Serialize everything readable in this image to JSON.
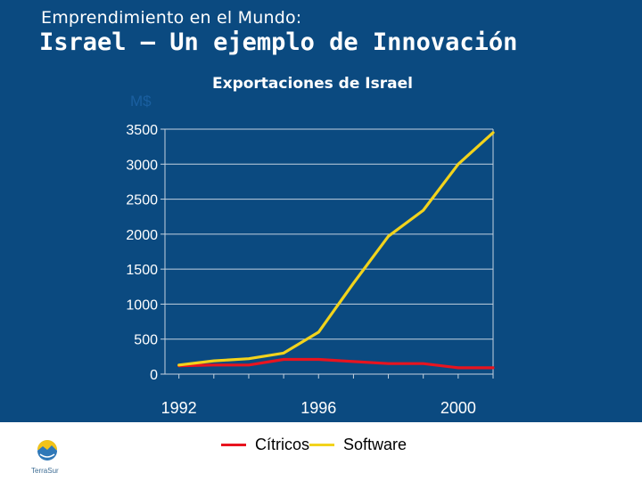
{
  "slide": {
    "subtitle": "Emprendimiento en el Mundo:",
    "title": "Israel – Un ejemplo de Innovación",
    "panel_color": "#0b4a80"
  },
  "chart_data": {
    "type": "line",
    "title": "Exportaciones de Israel",
    "ylabel": "M$",
    "xlabel": "",
    "ylim": [
      0,
      3500
    ],
    "yticks": [
      0,
      500,
      1000,
      1500,
      2000,
      2500,
      3000,
      3500
    ],
    "x": [
      1992,
      1993,
      1994,
      1995,
      1996,
      1997,
      1998,
      1999,
      2000,
      2001
    ],
    "xlim": [
      1991.6,
      2001
    ],
    "xtick_labels": [
      {
        "x": 1992,
        "label": "1992"
      },
      {
        "x": 1996,
        "label": "1996"
      },
      {
        "x": 2000,
        "label": "2000"
      }
    ],
    "grid": true,
    "legend_position": "bottom",
    "series": [
      {
        "name": "Cítricos",
        "color": "#e8141f",
        "values": [
          120,
          130,
          130,
          210,
          210,
          180,
          150,
          150,
          90,
          90
        ]
      },
      {
        "name": "Software",
        "color": "#f2d31c",
        "values": [
          130,
          190,
          220,
          300,
          600,
          1300,
          1970,
          2340,
          3000,
          3450
        ]
      }
    ]
  },
  "logo": {
    "text": "TerraSur",
    "icon": "terrasur-logo-icon"
  }
}
